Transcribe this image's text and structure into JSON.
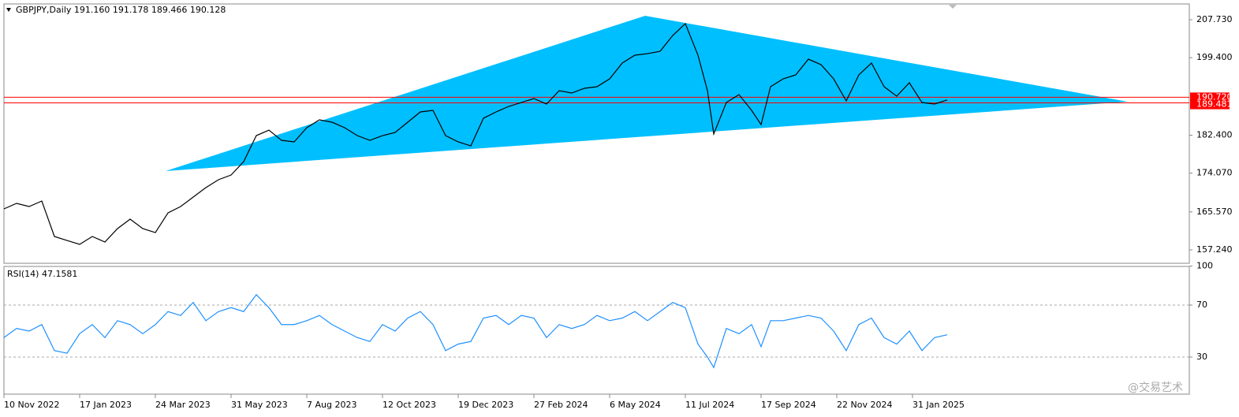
{
  "chart_data": [
    {
      "type": "line",
      "title": "GBPJPY,Daily  191.160 191.178 189.466 190.128",
      "color": "#000000",
      "x": [
        0,
        8,
        16,
        24,
        32,
        40,
        48,
        56,
        64,
        72,
        80,
        88,
        96,
        104,
        112,
        120,
        128,
        136,
        144,
        152,
        160,
        168,
        176,
        184,
        192,
        200,
        208,
        216,
        224,
        232,
        240,
        248,
        256,
        264,
        272,
        280,
        288,
        296,
        304,
        312,
        320,
        328,
        336,
        344,
        352,
        360,
        368,
        376,
        384,
        392,
        400,
        408,
        416,
        424,
        432,
        440,
        446,
        450,
        458,
        466,
        474,
        480,
        486,
        494,
        502,
        510,
        518,
        526,
        534,
        542,
        550,
        558,
        566,
        574,
        582,
        590,
        598
      ],
      "values": [
        166.23,
        167.44,
        166.75,
        167.96,
        160.18,
        159.31,
        158.45,
        160.18,
        158.97,
        161.91,
        163.98,
        161.91,
        161.04,
        165.36,
        166.75,
        168.82,
        170.9,
        172.63,
        173.66,
        176.6,
        182.31,
        183.52,
        181.27,
        180.93,
        184.04,
        185.77,
        185.25,
        184.04,
        182.31,
        181.27,
        182.31,
        183.0,
        185.25,
        187.5,
        187.84,
        182.31,
        180.93,
        180.06,
        186.12,
        187.5,
        188.71,
        189.57,
        190.44,
        189.23,
        192.17,
        191.65,
        192.69,
        193.03,
        194.76,
        198.22,
        199.95,
        200.29,
        200.81,
        204.27,
        206.87,
        199.95,
        192.17,
        182.66,
        189.57,
        191.3,
        187.84,
        184.73,
        193.03,
        194.76,
        195.63,
        199.08,
        197.87,
        194.76,
        189.92,
        195.63,
        198.22,
        193.03,
        190.96,
        193.9,
        189.57,
        189.23,
        190.13
      ],
      "xlim": [
        0,
        751.5
      ],
      "ylim": [
        154.3,
        211.19
      ],
      "yticks": [
        {
          "value": 207.73,
          "label": "207.730"
        },
        {
          "value": 199.4,
          "label": "199.400"
        },
        {
          "value": 182.4,
          "label": "182.400"
        },
        {
          "value": 174.07,
          "label": "174.070"
        },
        {
          "value": 165.57,
          "label": "165.570"
        },
        {
          "value": 157.24,
          "label": "157.240"
        }
      ],
      "hlines": [
        {
          "value": 190.72,
          "label": "190.720",
          "color": "#ff0000"
        },
        {
          "value": 189.481,
          "label": "189.481",
          "color": "#ff0000"
        }
      ],
      "shapes": [
        {
          "type": "triangle",
          "color": "#00bfff",
          "points": [
            [
              102.5,
              174.53
            ],
            [
              406.5,
              208.59
            ],
            [
              712.5,
              189.75
            ]
          ]
        }
      ]
    },
    {
      "type": "line",
      "title": "RSI(14) 47.1581",
      "color": "#1e90ff",
      "x": [
        0,
        8,
        16,
        24,
        32,
        40,
        48,
        56,
        64,
        72,
        80,
        88,
        96,
        104,
        112,
        120,
        128,
        136,
        144,
        152,
        160,
        168,
        176,
        184,
        192,
        200,
        208,
        216,
        224,
        232,
        240,
        248,
        256,
        264,
        272,
        280,
        288,
        296,
        304,
        312,
        320,
        328,
        336,
        344,
        352,
        360,
        368,
        376,
        384,
        392,
        400,
        408,
        416,
        424,
        432,
        440,
        446,
        450,
        458,
        466,
        474,
        480,
        486,
        494,
        502,
        510,
        518,
        526,
        534,
        542,
        550,
        558,
        566,
        574,
        582,
        590,
        598
      ],
      "values": [
        45,
        52,
        50,
        55,
        35,
        33,
        48,
        55,
        45,
        58,
        55,
        48,
        55,
        65,
        62,
        72,
        58,
        65,
        68,
        65,
        78,
        68,
        55,
        55,
        58,
        62,
        55,
        50,
        45,
        42,
        55,
        50,
        60,
        65,
        55,
        35,
        40,
        42,
        60,
        62,
        55,
        62,
        60,
        45,
        55,
        52,
        55,
        62,
        58,
        60,
        65,
        58,
        65,
        72,
        68,
        40,
        30,
        22,
        52,
        48,
        55,
        38,
        58,
        58,
        60,
        62,
        60,
        50,
        35,
        55,
        60,
        45,
        40,
        50,
        35,
        45,
        47.16
      ],
      "xlim": [
        0,
        751.5
      ],
      "ylim": [
        0,
        100
      ],
      "yticks": [
        30,
        70,
        100
      ],
      "xticks": [
        {
          "value": 0,
          "label": "10 Nov 2022"
        },
        {
          "value": 48,
          "label": "17 Jan 2023"
        },
        {
          "value": 96,
          "label": "24 Mar 2023"
        },
        {
          "value": 144,
          "label": "31 May 2023"
        },
        {
          "value": 192,
          "label": "7 Aug 2023"
        },
        {
          "value": 240,
          "label": "12 Oct 2023"
        },
        {
          "value": 288,
          "label": "19 Dec 2023"
        },
        {
          "value": 336,
          "label": "27 Feb 2024"
        },
        {
          "value": 384,
          "label": "6 May 2024"
        },
        {
          "value": 432,
          "label": "11 Jul 2024"
        },
        {
          "value": 480,
          "label": "17 Sep 2024"
        },
        {
          "value": 528,
          "label": "22 Nov 2024"
        },
        {
          "value": 576,
          "label": "31 Jan 2025"
        }
      ],
      "watermark": "@交易艺术"
    }
  ]
}
